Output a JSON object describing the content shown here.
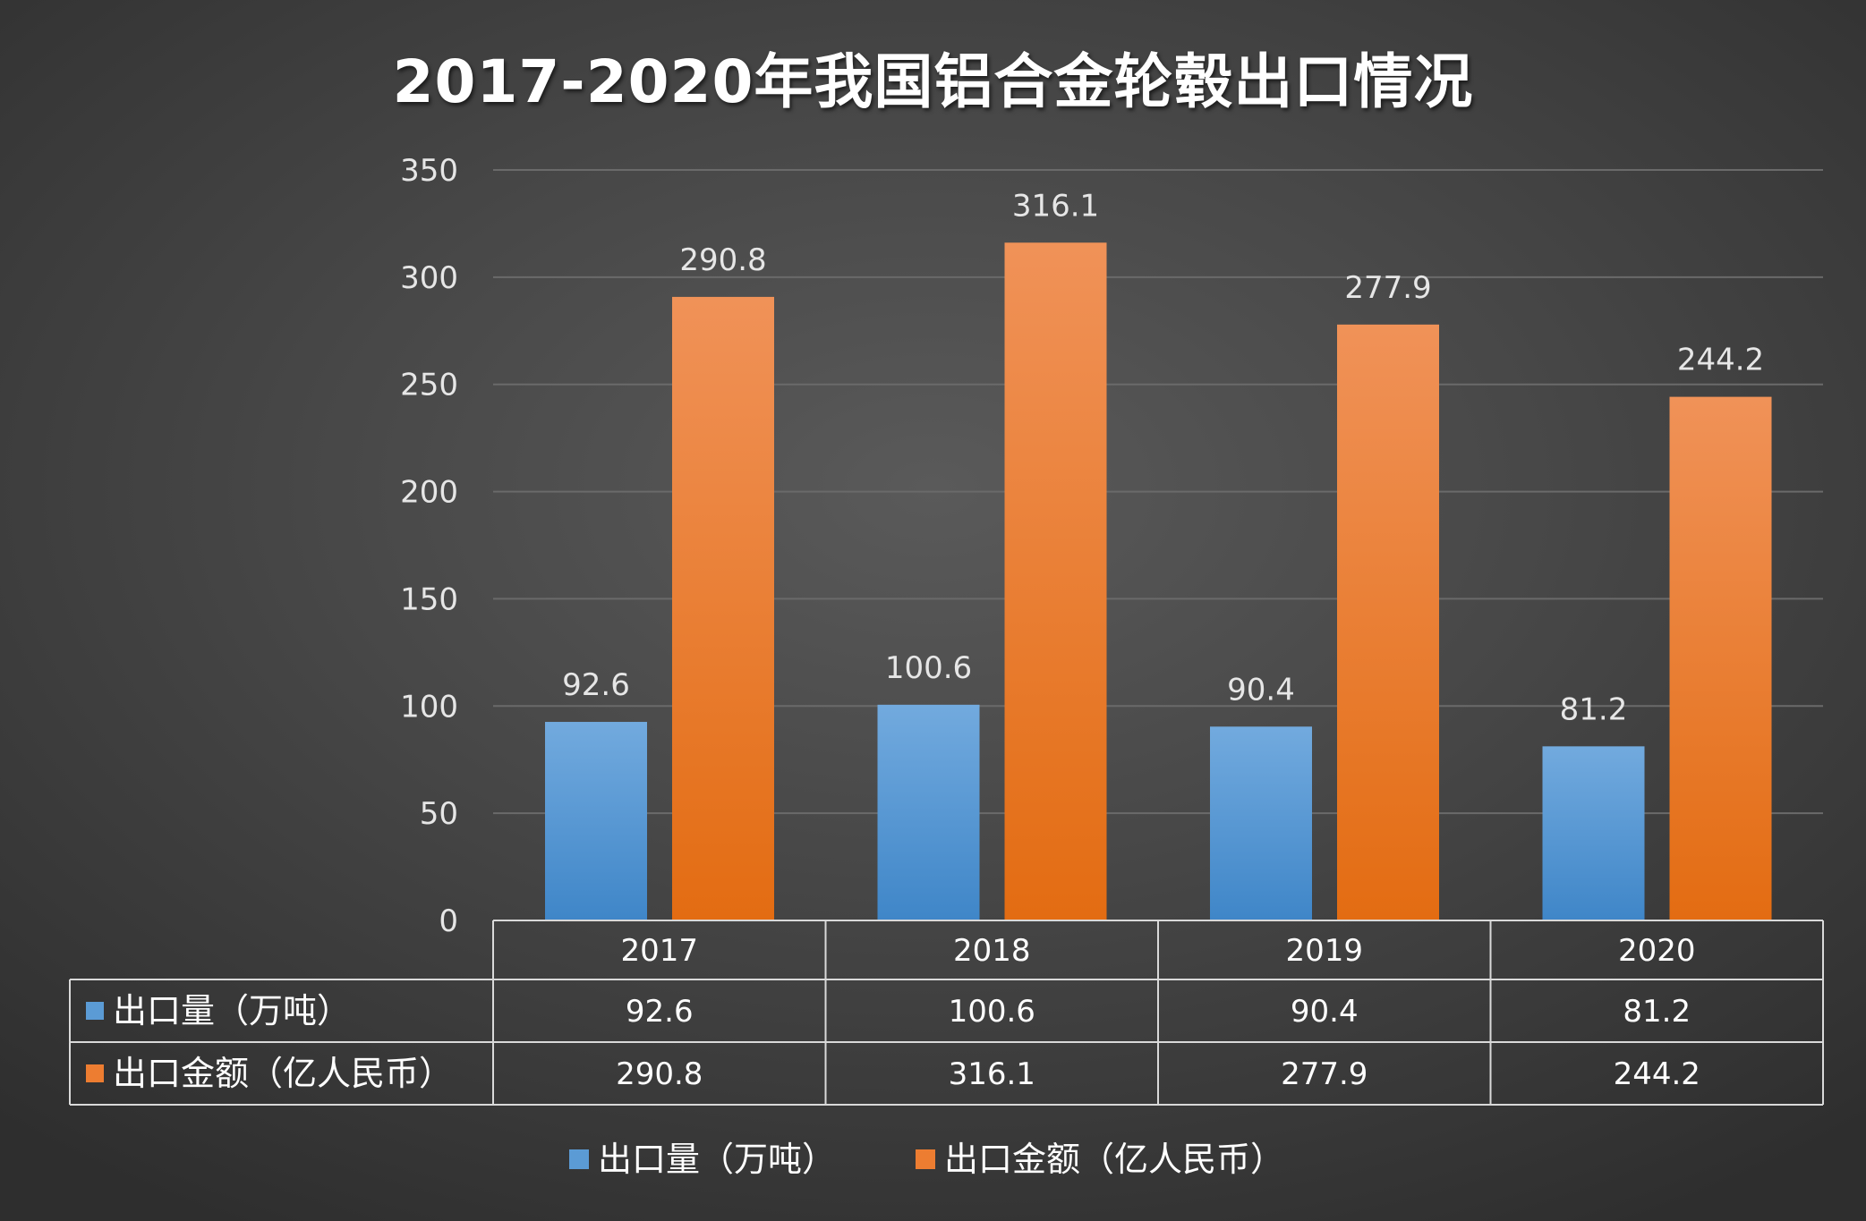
{
  "chart_data": {
    "type": "bar",
    "title": "2017-2020年我国铝合金轮毂出口情况",
    "categories": [
      "2017",
      "2018",
      "2019",
      "2020"
    ],
    "series": [
      {
        "name": "出口量（万吨）",
        "values": [
          92.6,
          100.6,
          90.4,
          81.2
        ],
        "color": "#5b9bd5"
      },
      {
        "name": "出口金额（亿人民币）",
        "values": [
          290.8,
          316.1,
          277.9,
          244.2
        ],
        "color": "#ed7d31"
      }
    ],
    "y_ticks": [
      "0",
      "50",
      "100",
      "150",
      "200",
      "250",
      "300",
      "350"
    ],
    "ylim": [
      0,
      350
    ],
    "grid": true,
    "data_table": true,
    "legend_position": "bottom",
    "background": "#474747"
  }
}
